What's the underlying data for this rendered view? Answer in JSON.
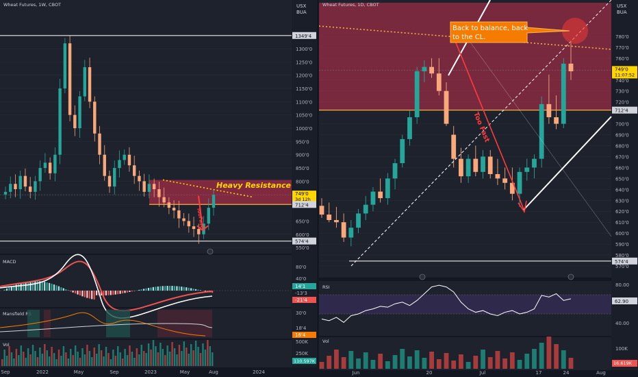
{
  "colors": {
    "background": "#1e222d",
    "frame": "#131722",
    "grid": "#2a2e39",
    "axis_text": "#b2b5be",
    "up": "#26a69a",
    "down": "#ef5350",
    "price_axis_box_top": "#2a2e39",
    "resistance_zone": "#d32f4f",
    "annotation_orange": "#f57c00",
    "accent_yellow": "#ffd600",
    "white": "#ffffff",
    "red_arrow": "#ff3b3b"
  },
  "chart_data": [
    {
      "type": "candlestick",
      "panel": "left",
      "title": "Wheat Futures, 1W, CBOT",
      "currency": [
        "USX",
        "BUA"
      ],
      "x_ticks": [
        "Sep",
        "2022",
        "May",
        "Sep",
        "2023",
        "May",
        "Aug",
        "2024"
      ],
      "y_ticks": [
        "1349'4",
        "1300'0",
        "1250'0",
        "1200'0",
        "1150'0",
        "1100'0",
        "1050'0",
        "1000'0",
        "950'0",
        "900'0",
        "850'0",
        "800'0",
        "749'0",
        "712'4",
        "650'0",
        "600'0",
        "574'4",
        "550'0"
      ],
      "ylim": [
        540,
        1380
      ],
      "price_label": {
        "value": "749'0",
        "countdown": "3d 12h"
      },
      "level_labels": [
        "1349'4",
        "712'4",
        "574'4"
      ],
      "annotations": [
        "Heavy Resistance",
        "TooFast"
      ],
      "candles_close_approx": [
        760,
        790,
        770,
        820,
        780,
        760,
        800,
        850,
        870,
        830,
        900,
        1150,
        1320,
        1050,
        1000,
        1120,
        1230,
        1100,
        980,
        900,
        820,
        780,
        850,
        880,
        900,
        860,
        820,
        800,
        760,
        790,
        770,
        740,
        720,
        700,
        690,
        660,
        650,
        630,
        620,
        600,
        640,
        700,
        749
      ]
    },
    {
      "type": "candlestick",
      "panel": "right",
      "title": "Wheat Futures, 1D, CBOT",
      "currency": [
        "USX",
        "BUA"
      ],
      "x_ticks": [
        "Jun",
        "20",
        "Jul",
        "17",
        "24",
        "Aug"
      ],
      "y_ticks": [
        "780'0",
        "770'0",
        "760'0",
        "749'0",
        "740'0",
        "730'0",
        "720'0",
        "712'4",
        "700'0",
        "690'0",
        "680'0",
        "670'0",
        "660'0",
        "650'0",
        "640'0",
        "630'0",
        "620'0",
        "610'0",
        "600'0",
        "590'0",
        "580'0",
        "574'4",
        "570'0"
      ],
      "ylim": [
        565,
        790
      ],
      "price_label": {
        "value": "749'0",
        "countdown": "11:07:52"
      },
      "annotations": [
        "Back to balance, back to the CL.",
        "Too Fast"
      ],
      "candles": [
        {
          "o": 625,
          "h": 632,
          "l": 614,
          "c": 617
        },
        {
          "o": 617,
          "h": 628,
          "l": 610,
          "c": 612
        },
        {
          "o": 612,
          "h": 624,
          "l": 605,
          "c": 610
        },
        {
          "o": 610,
          "h": 618,
          "l": 592,
          "c": 596
        },
        {
          "o": 596,
          "h": 612,
          "l": 588,
          "c": 605
        },
        {
          "o": 605,
          "h": 622,
          "l": 600,
          "c": 618
        },
        {
          "o": 618,
          "h": 634,
          "l": 612,
          "c": 626
        },
        {
          "o": 626,
          "h": 642,
          "l": 620,
          "c": 638
        },
        {
          "o": 638,
          "h": 650,
          "l": 628,
          "c": 632
        },
        {
          "o": 632,
          "h": 655,
          "l": 626,
          "c": 650
        },
        {
          "o": 650,
          "h": 668,
          "l": 640,
          "c": 664
        },
        {
          "o": 664,
          "h": 690,
          "l": 660,
          "c": 686
        },
        {
          "o": 686,
          "h": 712,
          "l": 680,
          "c": 706
        },
        {
          "o": 706,
          "h": 752,
          "l": 700,
          "c": 748
        },
        {
          "o": 748,
          "h": 758,
          "l": 738,
          "c": 752
        },
        {
          "o": 752,
          "h": 760,
          "l": 742,
          "c": 746
        },
        {
          "o": 746,
          "h": 760,
          "l": 726,
          "c": 730
        },
        {
          "o": 730,
          "h": 738,
          "l": 698,
          "c": 700
        },
        {
          "o": 690,
          "h": 698,
          "l": 660,
          "c": 668
        },
        {
          "o": 668,
          "h": 678,
          "l": 646,
          "c": 652
        },
        {
          "o": 652,
          "h": 672,
          "l": 646,
          "c": 668
        },
        {
          "o": 668,
          "h": 680,
          "l": 652,
          "c": 656
        },
        {
          "o": 656,
          "h": 676,
          "l": 650,
          "c": 670
        },
        {
          "o": 670,
          "h": 676,
          "l": 650,
          "c": 654
        },
        {
          "o": 654,
          "h": 668,
          "l": 644,
          "c": 650
        },
        {
          "o": 650,
          "h": 660,
          "l": 640,
          "c": 646
        },
        {
          "o": 646,
          "h": 660,
          "l": 630,
          "c": 636
        },
        {
          "o": 636,
          "h": 660,
          "l": 624,
          "c": 656
        },
        {
          "o": 656,
          "h": 668,
          "l": 648,
          "c": 660
        },
        {
          "o": 660,
          "h": 672,
          "l": 650,
          "c": 668
        },
        {
          "o": 668,
          "h": 725,
          "l": 660,
          "c": 718
        },
        {
          "o": 718,
          "h": 745,
          "l": 700,
          "c": 706
        },
        {
          "o": 706,
          "h": 726,
          "l": 695,
          "c": 700
        },
        {
          "o": 700,
          "h": 760,
          "l": 696,
          "c": 755
        },
        {
          "o": 755,
          "h": 776,
          "l": 740,
          "c": 748
        }
      ]
    },
    {
      "type": "macd",
      "panel": "left-indicator-1",
      "title": "MACD",
      "y_ticks": [
        "80'0",
        "40'0",
        "14'1",
        "-13'3",
        "-21'4"
      ],
      "values": {
        "macd": "14'1",
        "signal": "-13'3",
        "hist": "-21'4"
      }
    },
    {
      "type": "line",
      "panel": "left-indicator-2",
      "title": "Mansfield RS",
      "y_ticks": [
        "30'0",
        "18'4",
        "16'4"
      ]
    },
    {
      "type": "bar",
      "panel": "left-volume",
      "title": "Vol",
      "y_ticks": [
        "500K",
        "250K",
        "110.597K"
      ]
    },
    {
      "type": "line",
      "panel": "right-indicator",
      "title": "RSI",
      "y_ticks": [
        "80.00",
        "62.90",
        "40.00"
      ],
      "value": "62.90"
    },
    {
      "type": "bar",
      "panel": "right-volume",
      "title": "Vol",
      "y_ticks": [
        "100K",
        "16.619K"
      ]
    }
  ]
}
